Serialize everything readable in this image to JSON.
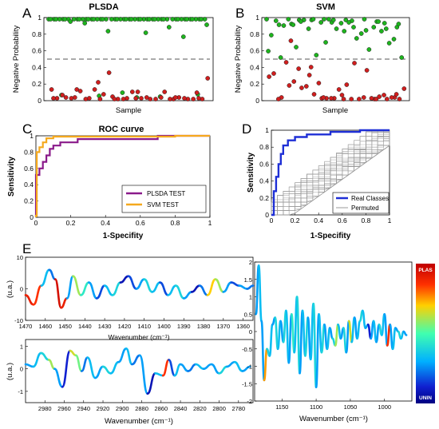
{
  "panel_letters": [
    "A",
    "B",
    "C",
    "D",
    "E"
  ],
  "chart_data": [
    {
      "id": "A",
      "type": "scatter",
      "title": "PLSDA",
      "xlabel": "Sample",
      "ylabel": "Negative Probability",
      "ylim": [
        0,
        1
      ],
      "yticks": [
        "0",
        "0.2",
        "0.4",
        "0.6",
        "0.8",
        "1"
      ],
      "threshold": 0.5,
      "colors": {
        "high": "#1eb41e",
        "low": "#d01e1e"
      },
      "series": [
        {
          "color": "green",
          "values": [
            1,
            1,
            1,
            1,
            1,
            1,
            1,
            1,
            1,
            1,
            1,
            1,
            1,
            1,
            1,
            1,
            1,
            1,
            1,
            1,
            1,
            1,
            1,
            1,
            1,
            1,
            1,
            1,
            1,
            1,
            1,
            1,
            1,
            1,
            1,
            1,
            1,
            1,
            1,
            1,
            1,
            1,
            1,
            1,
            1,
            1,
            1,
            1,
            1,
            1,
            1,
            1,
            0.97,
            0.9,
            0.85,
            0.93,
            0.83,
            0.95,
            0.78,
            0.08,
            0.05,
            0.03,
            0.04,
            0.06,
            0.02
          ]
        },
        {
          "color": "red",
          "values": [
            0.21,
            0.08,
            0.01,
            0.02,
            0.0,
            0.03,
            0.12,
            0.0,
            0.01,
            0.0,
            0.01,
            0.02,
            0.09,
            0.06,
            0.0,
            0.01,
            0.1,
            0.02,
            0.0,
            0.01,
            0.0,
            0.12,
            0.0,
            0.09,
            0.01,
            0.0,
            0.33,
            0.26,
            0.02,
            0.0,
            0.01,
            0.0,
            0.05,
            0.02,
            0.0,
            0.01,
            0.09,
            0.12,
            0.02,
            0.0,
            0.01
          ]
        }
      ]
    },
    {
      "id": "B",
      "type": "scatter",
      "title": "SVM",
      "xlabel": "Sample",
      "ylabel": "Negative Probability",
      "ylim": [
        0,
        1
      ],
      "yticks": [
        "0",
        "0.2",
        "0.4",
        "0.6",
        "0.8",
        "1"
      ],
      "threshold": 0.5,
      "series": [
        {
          "color": "green",
          "values": [
            1,
            0.98,
            0.99,
            0.95,
            0.96,
            0.93,
            1,
            0.99,
            0.9,
            0.85,
            0.94,
            0.97,
            1,
            0.8,
            0.76,
            0.99,
            0.7,
            0.88,
            0.92,
            0.62,
            0.55,
            0.52,
            0.96,
            0.65,
            0.85,
            1,
            0.98,
            0.82,
            0.88,
            0.75,
            0.95,
            1,
            0.9,
            0.96,
            0.6,
            0.9,
            0.97,
            0.88,
            0.99,
            0.52,
            0.86,
            1,
            0.94,
            0.99,
            0.93,
            0.97,
            0.71
          ]
        },
        {
          "color": "red",
          "values": [
            0.3,
            0.02,
            0.05,
            0.17,
            0.0,
            0.01,
            0.28,
            0.45,
            0.14,
            0.0,
            0.01,
            0.02,
            0.36,
            0.06,
            0.0,
            0.18,
            0.22,
            0.03,
            0.01,
            0.32,
            0.0,
            0.16,
            0.02,
            0.12,
            0.46,
            0.01,
            0.2,
            0.13,
            0.0,
            0.38,
            0.05,
            0.01,
            0.0,
            0.02,
            0.4,
            0.06,
            0.0,
            0.73,
            0.0,
            0.02
          ]
        }
      ]
    },
    {
      "id": "C",
      "type": "line",
      "title": "ROC curve",
      "xlabel": "1-Specifity",
      "ylabel": "Sensitivity",
      "xlim": [
        0,
        1
      ],
      "ylim": [
        0,
        1
      ],
      "xticks": [
        "0",
        "0.2",
        "0.4",
        "0.6",
        "0.8",
        "1"
      ],
      "yticks": [
        "0",
        "0.2",
        "0.4",
        "0.6",
        "0.8",
        "1"
      ],
      "series": [
        {
          "name": "PLSDA TEST",
          "color": "#8a1a8a",
          "x": [
            0,
            0,
            0.02,
            0.02,
            0.04,
            0.04,
            0.06,
            0.06,
            0.08,
            0.08,
            0.1,
            0.1,
            0.14,
            0.14,
            0.24,
            0.24,
            0.7,
            0.7,
            1
          ],
          "y": [
            0,
            0.52,
            0.52,
            0.6,
            0.6,
            0.68,
            0.68,
            0.76,
            0.76,
            0.84,
            0.84,
            0.88,
            0.88,
            0.92,
            0.92,
            0.96,
            0.96,
            1,
            1
          ]
        },
        {
          "name": "SVM TEST",
          "color": "#f5a91e",
          "x": [
            0,
            0,
            0.005,
            0.005,
            0.02,
            0.02,
            0.04,
            0.04,
            0.06,
            0.06,
            0.1,
            0.1,
            0.8,
            0.8,
            1
          ],
          "y": [
            0,
            0.02,
            0.02,
            0.8,
            0.8,
            0.86,
            0.86,
            0.92,
            0.92,
            0.97,
            0.97,
            0.99,
            0.99,
            1,
            1
          ]
        }
      ]
    },
    {
      "id": "D",
      "type": "line",
      "xlabel": "1-Specifity",
      "ylabel": "Sensitivity",
      "xlim": [
        0,
        1
      ],
      "ylim": [
        0,
        1
      ],
      "xticks": [
        "0",
        "0.2",
        "0.4",
        "0.6",
        "0.8",
        "1"
      ],
      "yticks": [
        "0",
        "0.2",
        "0.4",
        "0.6",
        "0.8",
        "1"
      ],
      "series": [
        {
          "name": "Real Classes",
          "color": "#1e2fd6",
          "x": [
            0,
            0.02,
            0.02,
            0.04,
            0.04,
            0.06,
            0.06,
            0.08,
            0.08,
            0.1,
            0.1,
            0.14,
            0.14,
            0.2,
            0.2,
            0.3,
            0.3,
            0.5,
            0.5,
            0.75,
            0.75,
            1
          ],
          "y": [
            0,
            0,
            0.28,
            0.28,
            0.45,
            0.45,
            0.6,
            0.6,
            0.72,
            0.72,
            0.82,
            0.82,
            0.88,
            0.88,
            0.92,
            0.92,
            0.95,
            0.95,
            0.98,
            0.98,
            1,
            1
          ]
        },
        {
          "name": "Permuted",
          "color": "#9a9a9a",
          "band": {
            "lower_offset": 0.18,
            "upper_offset": 0.18
          }
        }
      ]
    },
    {
      "id": "E1",
      "type": "line",
      "xlabel": "Wavenumber (cm⁻¹)",
      "ylabel": "(u.a.)",
      "xlim": [
        1470,
        1355
      ],
      "ylim": [
        -10,
        10
      ],
      "xticks": [
        "1470",
        "1460",
        "1450",
        "1440",
        "1430",
        "1420",
        "1410",
        "1400",
        "1390",
        "1380",
        "1370",
        "1360"
      ],
      "yticks": [
        "-10",
        "0",
        "10"
      ],
      "series": [
        {
          "x": [
            1470,
            1466,
            1462,
            1458,
            1455,
            1452,
            1449,
            1446,
            1442,
            1438,
            1434,
            1430,
            1426,
            1422,
            1418,
            1414,
            1410,
            1406,
            1402,
            1398,
            1394,
            1390,
            1386,
            1382,
            1378,
            1374,
            1370,
            1366,
            1362,
            1358,
            1355
          ],
          "y": [
            -2,
            -5,
            1,
            6,
            3,
            -6,
            -3,
            4,
            -2,
            2,
            -3,
            1,
            -2,
            2,
            4,
            0,
            3,
            -1,
            2,
            -2,
            1,
            -3,
            -1,
            1,
            -2,
            3,
            -1,
            2,
            1,
            0,
            1
          ],
          "c": [
            0.9,
            0.85,
            0.35,
            0.25,
            0.95,
            0.9,
            0.3,
            0.6,
            0.45,
            0.3,
            0.2,
            0.35,
            0.4,
            0.1,
            0.2,
            0.3,
            0.4,
            0.35,
            0.2,
            0.35,
            0.4,
            0.3,
            0.1,
            0.25,
            0.7,
            0.6,
            0.3,
            0.2,
            0.3,
            0.25,
            0.3
          ]
        }
      ]
    },
    {
      "id": "E2",
      "type": "line",
      "xlabel": "Wavenumber (cm⁻¹)",
      "ylabel": "(u.a.)",
      "xlim": [
        3000,
        2765
      ],
      "ylim": [
        -1.5,
        1.3
      ],
      "xticks": [
        "2980",
        "2960",
        "2940",
        "2920",
        "2900",
        "2880",
        "2860",
        "2840",
        "2820",
        "2800",
        "2780"
      ],
      "yticks": [
        "-1",
        "0",
        "1"
      ],
      "series": [
        {
          "x": [
            3000,
            2992,
            2984,
            2976,
            2970,
            2962,
            2954,
            2948,
            2942,
            2936,
            2928,
            2920,
            2912,
            2904,
            2896,
            2890,
            2882,
            2874,
            2866,
            2858,
            2852,
            2846,
            2840,
            2832,
            2824,
            2816,
            2808,
            2800,
            2792,
            2784,
            2776,
            2768
          ],
          "y": [
            0.2,
            0.1,
            0.7,
            0.4,
            0.0,
            -0.8,
            0.8,
            0.6,
            -0.1,
            0.5,
            -0.4,
            0.1,
            -0.2,
            0.3,
            0.9,
            0.2,
            0.6,
            -1.1,
            -0.2,
            -0.3,
            0.4,
            -0.3,
            0.2,
            -0.1,
            0.2,
            0.0,
            0.2,
            -0.2,
            0.1,
            0.3,
            -0.1,
            0.1
          ],
          "c": [
            0.3,
            0.35,
            0.4,
            0.6,
            0.3,
            0.15,
            0.65,
            0.55,
            0.25,
            0.35,
            0.3,
            0.4,
            0.35,
            0.3,
            0.35,
            0.25,
            0.3,
            0.1,
            0.35,
            0.85,
            0.2,
            0.35,
            0.3,
            0.25,
            0.35,
            0.3,
            0.3,
            0.4,
            0.3,
            0.35,
            0.3,
            0.35
          ]
        }
      ]
    },
    {
      "id": "E3",
      "type": "line",
      "xlabel": "Wavenumber (cm⁻¹)",
      "ylim": [
        -2,
        2
      ],
      "xlim": [
        1190,
        960
      ],
      "xticks": [
        "1150",
        "1100",
        "1050",
        "1000"
      ],
      "yticks": [
        "-2",
        "-1.5",
        "-1",
        "-0.5",
        "0",
        "0.5",
        "1",
        "1.5",
        "2"
      ],
      "series": [
        {
          "x": [
            1188,
            1184,
            1180,
            1176,
            1172,
            1168,
            1164,
            1160,
            1156,
            1152,
            1148,
            1144,
            1140,
            1136,
            1132,
            1128,
            1124,
            1120,
            1116,
            1112,
            1108,
            1104,
            1100,
            1096,
            1092,
            1088,
            1084,
            1080,
            1076,
            1072,
            1068,
            1064,
            1060,
            1056,
            1052,
            1048,
            1044,
            1040,
            1036,
            1032,
            1028,
            1024,
            1020,
            1016,
            1012,
            1008,
            1004,
            1000,
            996,
            992,
            988,
            984,
            980,
            976,
            972,
            968
          ],
          "y": [
            0.5,
            1.9,
            0.3,
            -1.4,
            -0.5,
            -0.7,
            0.2,
            0.4,
            -0.5,
            0.3,
            -0.3,
            0.6,
            -0.9,
            0.5,
            -0.6,
            1.0,
            -1.2,
            0.6,
            -0.7,
            0.4,
            -0.8,
            0.8,
            -1.6,
            0.5,
            -0.6,
            0.2,
            -0.5,
            0.1,
            -0.2,
            -0.4,
            0.2,
            -0.2,
            0.1,
            -0.6,
            0.3,
            -0.3,
            0.4,
            -0.2,
            0.3,
            0.6,
            0.1,
            0.2,
            -0.2,
            0.3,
            -0.3,
            0.2,
            -0.1,
            0.5,
            -0.4,
            0.2,
            -0.5,
            0.1,
            0.0,
            -0.2,
            0.0,
            -0.1
          ],
          "c": [
            0.3,
            0.35,
            0.3,
            0.75,
            0.4,
            0.35,
            0.3,
            0.4,
            0.35,
            0.3,
            0.4,
            0.35,
            0.3,
            0.45,
            0.35,
            0.4,
            0.3,
            0.35,
            0.4,
            0.3,
            0.35,
            0.4,
            0.3,
            0.35,
            0.4,
            0.3,
            0.35,
            0.3,
            0.4,
            0.6,
            0.35,
            0.3,
            0.4,
            0.3,
            0.65,
            0.35,
            0.3,
            0.35,
            0.4,
            0.35,
            0.3,
            0.15,
            0.3,
            0.35,
            0.3,
            0.4,
            0.35,
            0.3,
            0.85,
            0.3,
            0.35,
            0.3,
            0.4,
            0.35,
            0.3,
            0.3
          ]
        }
      ]
    }
  ],
  "colorbar": {
    "top_label": "PLAS",
    "bottom_label": "UNIN"
  }
}
